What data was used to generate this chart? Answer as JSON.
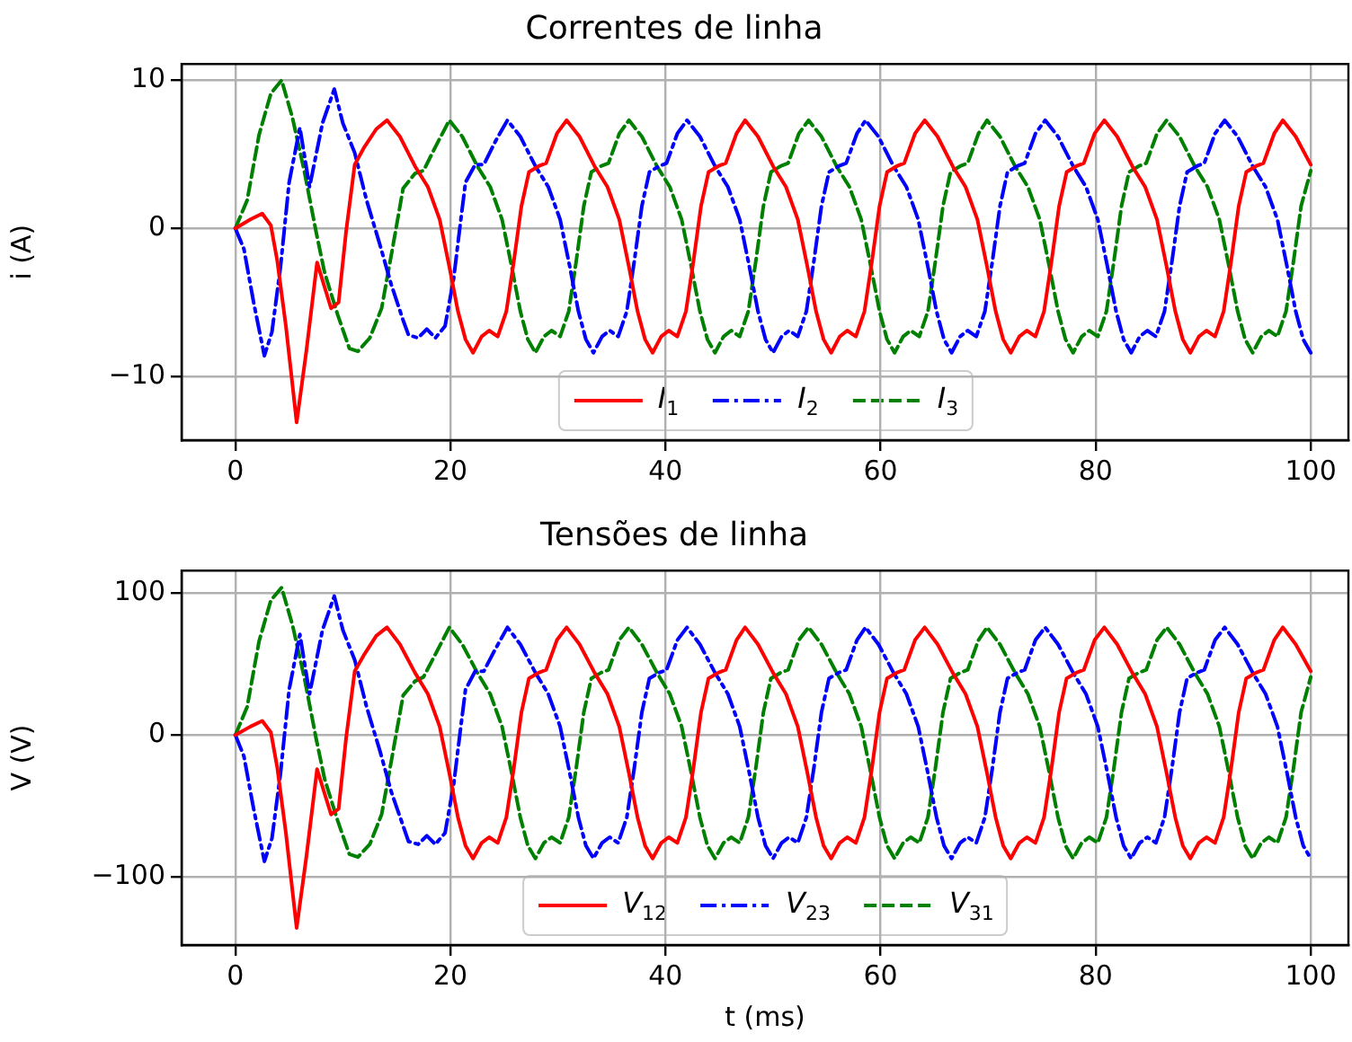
{
  "chart_data": [
    {
      "type": "line",
      "title": "Correntes de linha",
      "ylabel": "i (A)",
      "xlim": [
        -5,
        103.5
      ],
      "xticks": [
        0,
        20,
        40,
        60,
        80,
        100
      ],
      "ylim": [
        -14.3,
        11.1
      ],
      "yticks": [
        {
          "value": -10,
          "label": "−10"
        },
        0,
        10
      ],
      "grid": true,
      "legend": "bottom",
      "series": [
        {
          "name": "I$_{1}$",
          "color": "#ff0000",
          "line_style": "solid",
          "x": [
            0,
            1.4,
            2.5,
            3.3,
            3.9,
            4.7,
            5.7,
            6.6,
            7.6,
            8.9,
            9.6,
            10.3,
            11.1,
            12.0,
            13.1,
            14.1,
            15.3,
            16.7,
            17.9,
            19.0,
            19.9,
            20.7,
            21.4,
            22.1,
            22.9,
            23.6,
            24.4,
            25.2,
            25.9,
            26.6,
            27.3,
            28.2,
            28.9,
            29.9,
            30.8,
            32.0,
            33.4,
            34.6,
            35.7,
            36.6,
            37.4,
            38.1,
            38.8,
            39.6,
            40.3,
            41.1,
            41.9,
            42.6,
            43.3,
            44.0,
            44.9,
            45.6,
            46.6,
            47.4,
            48.6,
            50.0,
            51.2,
            52.3,
            53.2,
            54.0,
            54.7,
            55.4,
            56.2,
            56.9,
            57.7,
            58.5,
            59.2,
            59.9,
            60.6,
            61.5,
            62.2,
            63.2,
            64.1,
            65.3,
            66.7,
            67.9,
            69.0,
            69.9,
            70.7,
            71.4,
            72.1,
            72.9,
            73.6,
            74.4,
            75.2,
            75.9,
            76.6,
            77.3,
            78.2,
            78.9,
            79.9,
            80.8,
            82.0,
            83.4,
            84.6,
            85.7,
            86.6,
            87.4,
            88.1,
            88.8,
            89.6,
            90.3,
            91.1,
            91.9,
            92.6,
            93.3,
            94.0,
            94.9,
            95.6,
            96.6,
            97.4,
            98.6,
            100
          ],
          "values": [
            0,
            0.6,
            1.0,
            0.2,
            -2.2,
            -6.6,
            -13.1,
            -8.3,
            -2.3,
            -5.4,
            -5.0,
            -0.2,
            4.3,
            5.5,
            6.7,
            7.3,
            6.2,
            4.2,
            2.8,
            0.6,
            -2.6,
            -5.6,
            -7.5,
            -8.4,
            -7.3,
            -6.9,
            -7.3,
            -5.6,
            -2.2,
            1.5,
            3.8,
            4.2,
            4.4,
            6.4,
            7.3,
            6.2,
            4.2,
            2.8,
            0.6,
            -2.6,
            -5.6,
            -7.5,
            -8.4,
            -7.3,
            -6.9,
            -7.3,
            -5.6,
            -2.2,
            1.5,
            3.8,
            4.2,
            4.4,
            6.4,
            7.3,
            6.2,
            4.2,
            2.8,
            0.6,
            -2.6,
            -5.6,
            -7.5,
            -8.4,
            -7.3,
            -6.9,
            -7.3,
            -5.6,
            -2.2,
            1.5,
            3.8,
            4.2,
            4.4,
            6.4,
            7.3,
            6.2,
            4.2,
            2.8,
            0.6,
            -2.6,
            -5.6,
            -7.5,
            -8.4,
            -7.3,
            -6.9,
            -7.3,
            -5.6,
            -2.2,
            1.5,
            3.8,
            4.2,
            4.4,
            6.4,
            7.3,
            6.2,
            4.2,
            2.8,
            0.6,
            -2.6,
            -5.6,
            -7.5,
            -8.4,
            -7.3,
            -6.9,
            -7.3,
            -5.6,
            -2.2,
            1.5,
            3.8,
            4.2,
            4.4,
            6.4,
            7.3,
            6.2,
            4.3
          ]
        },
        {
          "name": "I$_{2}$",
          "color": "#0000ff",
          "line_style": "dashdot",
          "x": [
            0,
            0.8,
            1.7,
            2.7,
            3.4,
            4.2,
            5.0,
            6.0,
            6.9,
            8.1,
            9.2,
            10.0,
            11.1,
            12.2,
            13.4,
            14.5,
            15.6,
            16.1,
            17.0,
            17.8,
            18.6,
            19.5,
            20.3,
            20.9,
            21.4,
            22.3,
            23.1,
            24.2,
            25.3,
            26.5,
            27.9,
            29.1,
            30.2,
            31.1,
            31.9,
            32.6,
            33.3,
            34.1,
            34.8,
            35.6,
            36.4,
            37.1,
            37.8,
            38.5,
            39.4,
            40.1,
            41.1,
            42.0,
            43.2,
            44.6,
            45.8,
            46.9,
            47.8,
            48.6,
            49.3,
            50.0,
            50.8,
            51.5,
            52.3,
            53.1,
            53.8,
            54.5,
            55.2,
            56.1,
            56.8,
            57.8,
            58.6,
            59.8,
            61.2,
            62.4,
            63.5,
            64.4,
            65.2,
            65.9,
            66.6,
            67.4,
            68.1,
            68.9,
            69.7,
            70.4,
            71.1,
            71.8,
            72.7,
            73.4,
            74.4,
            75.3,
            76.5,
            77.9,
            79.1,
            80.2,
            81.1,
            81.9,
            82.6,
            83.3,
            84.1,
            84.8,
            85.6,
            86.4,
            87.1,
            87.8,
            88.5,
            89.4,
            90.1,
            91.1,
            92.0,
            93.2,
            94.6,
            95.8,
            96.9,
            97.8,
            98.6,
            99.3,
            100
          ],
          "values": [
            0,
            -1.4,
            -5.0,
            -8.6,
            -7.0,
            -2.6,
            3.1,
            6.8,
            2.8,
            7.1,
            9.4,
            7.1,
            5.1,
            1.9,
            -1.0,
            -3.8,
            -6.2,
            -7.2,
            -7.4,
            -6.8,
            -7.4,
            -6.6,
            -3.4,
            0.2,
            3.1,
            4.3,
            4.3,
            5.9,
            7.3,
            6.2,
            4.2,
            2.8,
            0.6,
            -2.6,
            -5.6,
            -7.5,
            -8.4,
            -7.3,
            -6.9,
            -7.3,
            -5.6,
            -2.2,
            1.5,
            3.8,
            4.2,
            4.4,
            6.4,
            7.3,
            6.2,
            4.2,
            2.8,
            0.6,
            -2.6,
            -5.6,
            -7.5,
            -8.4,
            -7.3,
            -6.9,
            -7.3,
            -5.6,
            -2.2,
            1.5,
            3.8,
            4.2,
            4.4,
            6.4,
            7.3,
            6.2,
            4.2,
            2.8,
            0.6,
            -2.6,
            -5.6,
            -7.5,
            -8.4,
            -7.3,
            -6.9,
            -7.3,
            -5.6,
            -2.2,
            1.5,
            3.8,
            4.2,
            4.4,
            6.4,
            7.3,
            6.2,
            4.2,
            2.8,
            0.6,
            -2.6,
            -5.6,
            -7.5,
            -8.4,
            -7.3,
            -6.9,
            -7.3,
            -5.6,
            -2.2,
            1.5,
            3.8,
            4.2,
            4.4,
            6.4,
            7.3,
            6.2,
            4.2,
            2.8,
            0.6,
            -2.6,
            -5.6,
            -7.5,
            -8.4
          ]
        },
        {
          "name": "I$_{3}$",
          "color": "#008000",
          "line_style": "dashed",
          "x": [
            0,
            1.1,
            2.2,
            3.3,
            4.3,
            5.3,
            6.4,
            7.5,
            8.3,
            9.5,
            10.6,
            11.4,
            12.5,
            13.6,
            14.7,
            15.6,
            16.7,
            17.5,
            18.6,
            19.9,
            21.1,
            22.5,
            23.7,
            24.8,
            25.7,
            26.5,
            27.2,
            27.9,
            28.7,
            29.4,
            30.2,
            31.0,
            31.7,
            32.4,
            33.1,
            34.0,
            34.7,
            35.7,
            36.6,
            37.8,
            39.2,
            40.4,
            41.5,
            42.4,
            43.2,
            43.9,
            44.6,
            45.4,
            46.1,
            46.9,
            47.7,
            48.4,
            49.1,
            49.8,
            50.7,
            51.4,
            52.4,
            53.3,
            54.5,
            55.9,
            57.1,
            58.2,
            59.1,
            59.9,
            60.6,
            61.3,
            62.1,
            62.8,
            63.6,
            64.4,
            65.1,
            65.8,
            66.5,
            67.4,
            68.1,
            69.1,
            69.9,
            71.1,
            72.5,
            73.7,
            74.8,
            75.7,
            76.5,
            77.2,
            77.9,
            78.7,
            79.4,
            80.2,
            81.0,
            81.7,
            82.4,
            83.1,
            84.0,
            84.7,
            85.7,
            86.6,
            87.8,
            89.2,
            90.4,
            91.5,
            92.4,
            93.2,
            93.9,
            94.6,
            95.4,
            96.1,
            96.9,
            97.7,
            98.4,
            99.1,
            100
          ],
          "values": [
            0,
            1.9,
            6.3,
            9.1,
            10.0,
            7.5,
            3.9,
            -0.2,
            -3.0,
            -5.8,
            -8.1,
            -8.3,
            -7.4,
            -5.4,
            -1.0,
            2.7,
            3.7,
            3.9,
            5.5,
            7.3,
            6.2,
            4.2,
            2.8,
            0.6,
            -2.6,
            -5.6,
            -7.5,
            -8.4,
            -7.3,
            -6.9,
            -7.3,
            -5.6,
            -2.2,
            1.5,
            3.8,
            4.2,
            4.4,
            6.4,
            7.3,
            6.2,
            4.2,
            2.8,
            0.6,
            -2.6,
            -5.6,
            -7.5,
            -8.4,
            -7.3,
            -6.9,
            -7.3,
            -5.6,
            -2.2,
            1.5,
            3.8,
            4.2,
            4.4,
            6.4,
            7.3,
            6.2,
            4.2,
            2.8,
            0.6,
            -2.6,
            -5.6,
            -7.5,
            -8.4,
            -7.3,
            -6.9,
            -7.3,
            -5.6,
            -2.2,
            1.5,
            3.8,
            4.2,
            4.4,
            6.4,
            7.3,
            6.2,
            4.2,
            2.8,
            0.6,
            -2.6,
            -5.6,
            -7.5,
            -8.4,
            -7.3,
            -6.9,
            -7.3,
            -5.6,
            -2.2,
            1.5,
            3.8,
            4.2,
            4.4,
            6.4,
            7.3,
            6.2,
            4.2,
            2.8,
            0.6,
            -2.6,
            -5.6,
            -7.5,
            -8.4,
            -7.3,
            -6.9,
            -7.3,
            -5.6,
            -2.2,
            1.5,
            3.9
          ]
        }
      ]
    },
    {
      "type": "line",
      "title": "Tensões de linha",
      "xlabel": "t (ms)",
      "ylabel": "V (V)",
      "xlim": [
        -5,
        103.5
      ],
      "xticks": [
        0,
        20,
        40,
        60,
        80,
        100
      ],
      "ylim": [
        -148,
        116
      ],
      "yticks": [
        {
          "value": -100,
          "label": "−100"
        },
        0,
        100
      ],
      "grid": true,
      "legend": "bottom",
      "series": [
        {
          "name": "V$_{12}$",
          "color": "#ff0000",
          "line_style": "solid",
          "x": [
            0,
            1.4,
            2.5,
            3.3,
            3.9,
            4.7,
            5.7,
            6.6,
            7.6,
            8.9,
            9.6,
            10.3,
            11.1,
            12.0,
            13.1,
            14.1,
            15.3,
            16.7,
            17.9,
            19.0,
            19.9,
            20.7,
            21.4,
            22.1,
            22.9,
            23.6,
            24.4,
            25.2,
            25.9,
            26.6,
            27.3,
            28.2,
            28.9,
            29.9,
            30.8,
            32.0,
            33.4,
            34.6,
            35.7,
            36.6,
            37.4,
            38.1,
            38.8,
            39.6,
            40.3,
            41.1,
            41.9,
            42.6,
            43.3,
            44.0,
            44.9,
            45.6,
            46.6,
            47.4,
            48.6,
            50.0,
            51.2,
            52.3,
            53.2,
            54.0,
            54.7,
            55.4,
            56.2,
            56.9,
            57.7,
            58.5,
            59.2,
            59.9,
            60.6,
            61.5,
            62.2,
            63.2,
            64.1,
            65.3,
            66.7,
            67.9,
            69.0,
            69.9,
            70.7,
            71.4,
            72.1,
            72.9,
            73.6,
            74.4,
            75.2,
            75.9,
            76.6,
            77.3,
            78.2,
            78.9,
            79.9,
            80.8,
            82.0,
            83.4,
            84.6,
            85.7,
            86.6,
            87.4,
            88.1,
            88.8,
            89.6,
            90.3,
            91.1,
            91.9,
            92.6,
            93.3,
            94.0,
            94.9,
            95.6,
            96.6,
            97.4,
            98.6,
            100
          ],
          "values": [
            0,
            6,
            10,
            2,
            -23,
            -69,
            -136,
            -86,
            -24,
            -56,
            -52,
            -2,
            45,
            57,
            70,
            76,
            64,
            44,
            29,
            6,
            -27,
            -58,
            -78,
            -87,
            -76,
            -72,
            -76,
            -58,
            -23,
            16,
            40,
            44,
            46,
            67,
            76,
            64,
            44,
            29,
            6,
            -27,
            -58,
            -78,
            -87,
            -76,
            -72,
            -76,
            -58,
            -23,
            16,
            40,
            44,
            46,
            67,
            76,
            64,
            44,
            29,
            6,
            -27,
            -58,
            -78,
            -87,
            -76,
            -72,
            -76,
            -58,
            -23,
            16,
            40,
            44,
            46,
            67,
            76,
            64,
            44,
            29,
            6,
            -27,
            -58,
            -78,
            -87,
            -76,
            -72,
            -76,
            -58,
            -23,
            16,
            40,
            44,
            46,
            67,
            76,
            64,
            44,
            29,
            6,
            -27,
            -58,
            -78,
            -87,
            -76,
            -72,
            -76,
            -58,
            -23,
            16,
            40,
            44,
            46,
            67,
            76,
            64,
            45
          ]
        },
        {
          "name": "V$_{23}$",
          "color": "#0000ff",
          "line_style": "dashdot",
          "x": [
            0,
            0.8,
            1.7,
            2.7,
            3.4,
            4.2,
            5.0,
            6.0,
            6.9,
            8.1,
            9.2,
            10.0,
            11.1,
            12.2,
            13.4,
            14.5,
            15.6,
            16.1,
            17.0,
            17.8,
            18.6,
            19.5,
            20.3,
            20.9,
            21.4,
            22.3,
            23.1,
            24.2,
            25.3,
            26.5,
            27.9,
            29.1,
            30.2,
            31.1,
            31.9,
            32.6,
            33.3,
            34.1,
            34.8,
            35.6,
            36.4,
            37.1,
            37.8,
            38.5,
            39.4,
            40.1,
            41.1,
            42.0,
            43.2,
            44.6,
            45.8,
            46.9,
            47.8,
            48.6,
            49.3,
            50.0,
            50.8,
            51.5,
            52.3,
            53.1,
            53.8,
            54.5,
            55.2,
            56.1,
            56.8,
            57.8,
            58.6,
            59.8,
            61.2,
            62.4,
            63.5,
            64.4,
            65.2,
            65.9,
            66.6,
            67.4,
            68.1,
            68.9,
            69.7,
            70.4,
            71.1,
            71.8,
            72.7,
            73.4,
            74.4,
            75.3,
            76.5,
            77.9,
            79.1,
            80.2,
            81.1,
            81.9,
            82.6,
            83.3,
            84.1,
            84.8,
            85.6,
            86.4,
            87.1,
            87.8,
            88.5,
            89.4,
            90.1,
            91.1,
            92.0,
            93.2,
            94.6,
            95.8,
            96.9,
            97.8,
            98.6,
            99.3,
            100
          ],
          "values": [
            0,
            -15,
            -52,
            -89,
            -73,
            -27,
            32,
            71,
            29,
            74,
            98,
            74,
            53,
            20,
            -10,
            -40,
            -64,
            -75,
            -77,
            -71,
            -77,
            -69,
            -35,
            2,
            32,
            45,
            45,
            61,
            76,
            64,
            44,
            29,
            6,
            -27,
            -58,
            -78,
            -87,
            -76,
            -72,
            -76,
            -58,
            -23,
            16,
            40,
            44,
            46,
            67,
            76,
            64,
            44,
            29,
            6,
            -27,
            -58,
            -78,
            -87,
            -76,
            -72,
            -76,
            -58,
            -23,
            16,
            40,
            44,
            46,
            67,
            76,
            64,
            44,
            29,
            6,
            -27,
            -58,
            -78,
            -87,
            -76,
            -72,
            -76,
            -58,
            -23,
            16,
            40,
            44,
            46,
            67,
            76,
            64,
            44,
            29,
            6,
            -27,
            -58,
            -78,
            -87,
            -76,
            -72,
            -76,
            -58,
            -23,
            16,
            40,
            44,
            46,
            67,
            76,
            64,
            44,
            29,
            6,
            -27,
            -58,
            -78,
            -87
          ]
        },
        {
          "name": "V$_{31}$",
          "color": "#008000",
          "line_style": "dashed",
          "x": [
            0,
            1.1,
            2.2,
            3.3,
            4.3,
            5.3,
            6.4,
            7.5,
            8.3,
            9.5,
            10.6,
            11.4,
            12.5,
            13.6,
            14.7,
            15.6,
            16.7,
            17.5,
            18.6,
            19.9,
            21.1,
            22.5,
            23.7,
            24.8,
            25.7,
            26.5,
            27.2,
            27.9,
            28.7,
            29.4,
            30.2,
            31.0,
            31.7,
            32.4,
            33.1,
            34.0,
            34.7,
            35.7,
            36.6,
            37.8,
            39.2,
            40.4,
            41.5,
            42.4,
            43.2,
            43.9,
            44.6,
            45.4,
            46.1,
            46.9,
            47.7,
            48.4,
            49.1,
            49.8,
            50.7,
            51.4,
            52.4,
            53.3,
            54.5,
            55.9,
            57.1,
            58.2,
            59.1,
            59.9,
            60.6,
            61.3,
            62.1,
            62.8,
            63.6,
            64.4,
            65.1,
            65.8,
            66.5,
            67.4,
            68.1,
            69.1,
            69.9,
            71.1,
            72.5,
            73.7,
            74.8,
            75.7,
            76.5,
            77.2,
            77.9,
            78.7,
            79.4,
            80.2,
            81.0,
            81.7,
            82.4,
            83.1,
            84.0,
            84.7,
            85.7,
            86.6,
            87.8,
            89.2,
            90.4,
            91.5,
            92.4,
            93.2,
            93.9,
            94.6,
            95.4,
            96.1,
            96.9,
            97.7,
            98.4,
            99.1,
            100
          ],
          "values": [
            0,
            20,
            66,
            95,
            104,
            78,
            41,
            -2,
            -31,
            -60,
            -84,
            -86,
            -77,
            -56,
            -10,
            28,
            38,
            41,
            57,
            76,
            64,
            44,
            29,
            6,
            -27,
            -58,
            -78,
            -87,
            -76,
            -72,
            -76,
            -58,
            -23,
            16,
            40,
            44,
            46,
            67,
            76,
            64,
            44,
            29,
            6,
            -27,
            -58,
            -78,
            -87,
            -76,
            -72,
            -76,
            -58,
            -23,
            16,
            40,
            44,
            46,
            67,
            76,
            64,
            44,
            29,
            6,
            -27,
            -58,
            -78,
            -87,
            -76,
            -72,
            -76,
            -58,
            -23,
            16,
            40,
            44,
            46,
            67,
            76,
            64,
            44,
            29,
            6,
            -27,
            -58,
            -78,
            -87,
            -76,
            -72,
            -76,
            -58,
            -23,
            16,
            40,
            44,
            46,
            67,
            76,
            64,
            44,
            29,
            6,
            -27,
            -58,
            -78,
            -87,
            -76,
            -72,
            -76,
            -58,
            -23,
            16,
            41
          ]
        }
      ]
    }
  ]
}
